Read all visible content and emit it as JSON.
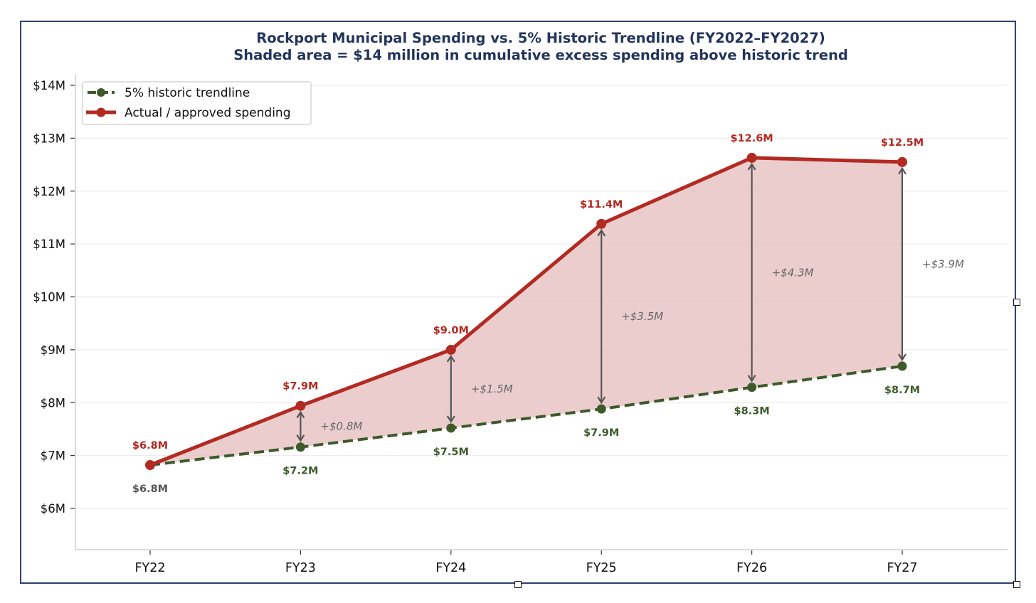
{
  "chart_data": {
    "type": "line",
    "title": "Rockport Municipal Spending vs. 5% Historic Trendline (FY2022–FY2027)",
    "subtitle": "Shaded area = $14 million in cumulative excess spending above historic trend",
    "xlabel": "",
    "ylabel": "",
    "categories": [
      "FY22",
      "FY23",
      "FY24",
      "FY25",
      "FY26",
      "FY27"
    ],
    "ylim": [
      5.22,
      14.22
    ],
    "yticks": [
      6,
      7,
      8,
      9,
      10,
      11,
      12,
      13,
      14
    ],
    "ytick_labels": [
      "$6M",
      "$7M",
      "$8M",
      "$9M",
      "$10M",
      "$11M",
      "$12M",
      "$13M",
      "$14M"
    ],
    "grid": "horizontal",
    "legend_position": "top-left",
    "series": [
      {
        "name": "5% historic trendline",
        "style": "dashed",
        "color": "#3d5a2a",
        "values": [
          6.82,
          7.16,
          7.52,
          7.88,
          8.29,
          8.69
        ],
        "labels": [
          "$6.8M",
          "$7.2M",
          "$7.5M",
          "$7.9M",
          "$8.3M",
          "$8.7M"
        ]
      },
      {
        "name": "Actual / approved spending",
        "style": "solid",
        "color": "#b22a22",
        "values": [
          6.82,
          7.94,
          9.0,
          11.38,
          12.63,
          12.55
        ],
        "labels": [
          "$6.8M",
          "$7.9M",
          "$9.0M",
          "$11.4M",
          "$12.6M",
          "$12.5M"
        ]
      }
    ],
    "gap_annotations": [
      "",
      "+$0.8M",
      "+$1.5M",
      "+$3.5M",
      "+$4.3M",
      "+$3.9M"
    ],
    "shaded_area_color": "#e6bcbc",
    "first_trend_label_color": "#555555",
    "annotation_color": "#555555",
    "title_color": "#24355c"
  }
}
